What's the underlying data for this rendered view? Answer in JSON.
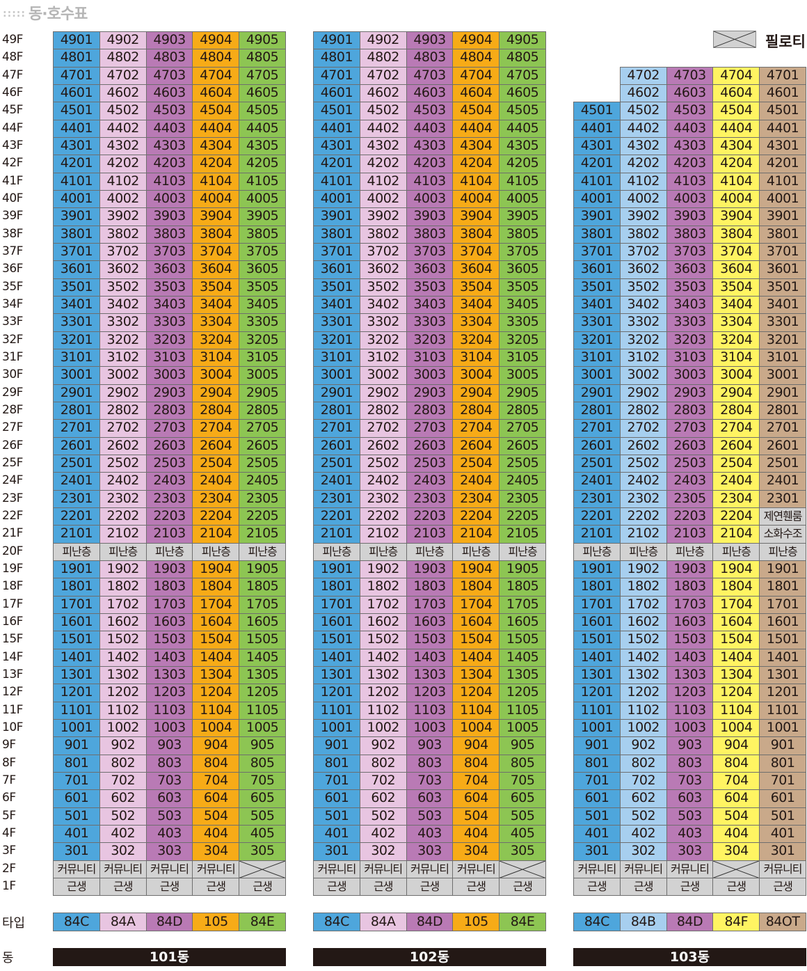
{
  "title": "동·호수표",
  "title_dots": ":::::",
  "legend": {
    "label": "필로티",
    "icon": "piloti-cross-icon"
  },
  "floors": [
    "49F",
    "48F",
    "47F",
    "46F",
    "45F",
    "44F",
    "43F",
    "42F",
    "41F",
    "40F",
    "39F",
    "38F",
    "37F",
    "36F",
    "35F",
    "34F",
    "33F",
    "32F",
    "31F",
    "30F",
    "29F",
    "28F",
    "27F",
    "26F",
    "25F",
    "24F",
    "23F",
    "22F",
    "21F",
    "20F",
    "19F",
    "18F",
    "17F",
    "16F",
    "15F",
    "14F",
    "13F",
    "12F",
    "11F",
    "10F",
    "9F",
    "8F",
    "7F",
    "6F",
    "5F",
    "4F",
    "3F",
    "2F",
    "1F"
  ],
  "type_label": "타입",
  "dong_label": "동",
  "gray_color": "#d2d2d2",
  "buildings": [
    {
      "name": "101동",
      "colors": [
        "#4ea6dc",
        "#e8c5e1",
        "#b97ab5",
        "#f7ab17",
        "#8dc553"
      ],
      "types": [
        "84C",
        "84A",
        "84D",
        "105",
        "84E"
      ],
      "rows": [
        [
          "4901",
          "4902",
          "4903",
          "4904",
          "4905"
        ],
        [
          "4801",
          "4802",
          "4803",
          "4804",
          "4805"
        ],
        [
          "4701",
          "4702",
          "4703",
          "4704",
          "4705"
        ],
        [
          "4601",
          "4602",
          "4603",
          "4604",
          "4605"
        ],
        [
          "4501",
          "4502",
          "4503",
          "4504",
          "4505"
        ],
        [
          "4401",
          "4402",
          "4403",
          "4404",
          "4405"
        ],
        [
          "4301",
          "4302",
          "4303",
          "4304",
          "4305"
        ],
        [
          "4201",
          "4202",
          "4203",
          "4204",
          "4205"
        ],
        [
          "4101",
          "4102",
          "4103",
          "4104",
          "4105"
        ],
        [
          "4001",
          "4002",
          "4003",
          "4004",
          "4005"
        ],
        [
          "3901",
          "3902",
          "3903",
          "3904",
          "3905"
        ],
        [
          "3801",
          "3802",
          "3803",
          "3804",
          "3805"
        ],
        [
          "3701",
          "3702",
          "3703",
          "3704",
          "3705"
        ],
        [
          "3601",
          "3602",
          "3603",
          "3604",
          "3605"
        ],
        [
          "3501",
          "3502",
          "3503",
          "3504",
          "3505"
        ],
        [
          "3401",
          "3402",
          "3403",
          "3404",
          "3405"
        ],
        [
          "3301",
          "3302",
          "3303",
          "3304",
          "3305"
        ],
        [
          "3201",
          "3202",
          "3203",
          "3204",
          "3205"
        ],
        [
          "3101",
          "3102",
          "3103",
          "3104",
          "3105"
        ],
        [
          "3001",
          "3002",
          "3003",
          "3004",
          "3005"
        ],
        [
          "2901",
          "2902",
          "2903",
          "2904",
          "2905"
        ],
        [
          "2801",
          "2802",
          "2803",
          "2804",
          "2805"
        ],
        [
          "2701",
          "2702",
          "2703",
          "2704",
          "2705"
        ],
        [
          "2601",
          "2602",
          "2603",
          "2604",
          "2605"
        ],
        [
          "2501",
          "2502",
          "2503",
          "2504",
          "2505"
        ],
        [
          "2401",
          "2402",
          "2403",
          "2404",
          "2405"
        ],
        [
          "2301",
          "2302",
          "2303",
          "2304",
          "2305"
        ],
        [
          "2201",
          "2202",
          "2203",
          "2204",
          "2205"
        ],
        [
          "2101",
          "2102",
          "2103",
          "2104",
          "2105"
        ],
        [
          "피난층",
          "피난층",
          "피난층",
          "피난층",
          "피난층"
        ],
        [
          "1901",
          "1902",
          "1903",
          "1904",
          "1905"
        ],
        [
          "1801",
          "1802",
          "1803",
          "1804",
          "1805"
        ],
        [
          "1701",
          "1702",
          "1703",
          "1704",
          "1705"
        ],
        [
          "1601",
          "1602",
          "1603",
          "1604",
          "1605"
        ],
        [
          "1501",
          "1502",
          "1503",
          "1504",
          "1505"
        ],
        [
          "1401",
          "1402",
          "1403",
          "1404",
          "1405"
        ],
        [
          "1301",
          "1302",
          "1303",
          "1304",
          "1305"
        ],
        [
          "1201",
          "1202",
          "1203",
          "1204",
          "1205"
        ],
        [
          "1101",
          "1102",
          "1103",
          "1104",
          "1105"
        ],
        [
          "1001",
          "1002",
          "1003",
          "1004",
          "1005"
        ],
        [
          "901",
          "902",
          "903",
          "904",
          "905"
        ],
        [
          "801",
          "802",
          "803",
          "804",
          "805"
        ],
        [
          "701",
          "702",
          "703",
          "704",
          "705"
        ],
        [
          "601",
          "602",
          "603",
          "604",
          "605"
        ],
        [
          "501",
          "502",
          "503",
          "504",
          "505"
        ],
        [
          "401",
          "402",
          "403",
          "404",
          "405"
        ],
        [
          "301",
          "302",
          "303",
          "304",
          "305"
        ],
        [
          "커뮤니티",
          "커뮤니티",
          "커뮤니티",
          "커뮤니티",
          ""
        ],
        [
          "근생",
          "근생",
          "근생",
          "근생",
          "근생"
        ]
      ]
    },
    {
      "name": "102동",
      "colors": [
        "#4ea6dc",
        "#e8c5e1",
        "#b97ab5",
        "#f7ab17",
        "#8dc553"
      ],
      "types": [
        "84C",
        "84A",
        "84D",
        "105",
        "84E"
      ],
      "rows": [
        [
          "4901",
          "4902",
          "4903",
          "4904",
          "4905"
        ],
        [
          "4801",
          "4802",
          "4803",
          "4804",
          "4805"
        ],
        [
          "4701",
          "4702",
          "4703",
          "4704",
          "4705"
        ],
        [
          "4601",
          "4602",
          "4603",
          "4604",
          "4605"
        ],
        [
          "4501",
          "4502",
          "4503",
          "4504",
          "4505"
        ],
        [
          "4401",
          "4402",
          "4403",
          "4404",
          "4405"
        ],
        [
          "4301",
          "4302",
          "4303",
          "4304",
          "4305"
        ],
        [
          "4201",
          "4202",
          "4203",
          "4204",
          "4205"
        ],
        [
          "4101",
          "4102",
          "4103",
          "4104",
          "4105"
        ],
        [
          "4001",
          "4002",
          "4003",
          "4004",
          "4005"
        ],
        [
          "3901",
          "3902",
          "3903",
          "3904",
          "3905"
        ],
        [
          "3801",
          "3802",
          "3803",
          "3804",
          "3805"
        ],
        [
          "3701",
          "3702",
          "3703",
          "3704",
          "3705"
        ],
        [
          "3601",
          "3602",
          "3603",
          "3604",
          "3605"
        ],
        [
          "3501",
          "3502",
          "3503",
          "3504",
          "3505"
        ],
        [
          "3401",
          "3402",
          "3403",
          "3404",
          "3405"
        ],
        [
          "3301",
          "3302",
          "3303",
          "3304",
          "3305"
        ],
        [
          "3201",
          "3202",
          "3203",
          "3204",
          "3205"
        ],
        [
          "3101",
          "3102",
          "3103",
          "3104",
          "3105"
        ],
        [
          "3001",
          "3002",
          "3003",
          "3004",
          "3005"
        ],
        [
          "2901",
          "2902",
          "2903",
          "2904",
          "2905"
        ],
        [
          "2801",
          "2802",
          "2803",
          "2804",
          "2805"
        ],
        [
          "2701",
          "2702",
          "2703",
          "2704",
          "2705"
        ],
        [
          "2601",
          "2602",
          "2603",
          "2604",
          "2605"
        ],
        [
          "2501",
          "2502",
          "2503",
          "2504",
          "2505"
        ],
        [
          "2401",
          "2402",
          "2403",
          "2404",
          "2405"
        ],
        [
          "2301",
          "2302",
          "2303",
          "2304",
          "2305"
        ],
        [
          "2201",
          "2202",
          "2203",
          "2204",
          "2205"
        ],
        [
          "2101",
          "2102",
          "2103",
          "2104",
          "2105"
        ],
        [
          "피난층",
          "피난층",
          "피난층",
          "피난층",
          "피난층"
        ],
        [
          "1901",
          "1902",
          "1903",
          "1904",
          "1905"
        ],
        [
          "1801",
          "1802",
          "1803",
          "1804",
          "1805"
        ],
        [
          "1701",
          "1702",
          "1703",
          "1704",
          "1705"
        ],
        [
          "1601",
          "1602",
          "1603",
          "1604",
          "1605"
        ],
        [
          "1501",
          "1502",
          "1503",
          "1504",
          "1505"
        ],
        [
          "1401",
          "1402",
          "1403",
          "1404",
          "1405"
        ],
        [
          "1301",
          "1302",
          "1303",
          "1304",
          "1305"
        ],
        [
          "1201",
          "1202",
          "1203",
          "1204",
          "1205"
        ],
        [
          "1101",
          "1102",
          "1103",
          "1104",
          "1105"
        ],
        [
          "1001",
          "1002",
          "1003",
          "1004",
          "1005"
        ],
        [
          "901",
          "902",
          "903",
          "904",
          "905"
        ],
        [
          "801",
          "802",
          "803",
          "804",
          "805"
        ],
        [
          "701",
          "702",
          "703",
          "704",
          "705"
        ],
        [
          "601",
          "602",
          "603",
          "604",
          "605"
        ],
        [
          "501",
          "502",
          "503",
          "504",
          "505"
        ],
        [
          "401",
          "402",
          "403",
          "404",
          "405"
        ],
        [
          "301",
          "302",
          "303",
          "304",
          "305"
        ],
        [
          "커뮤니티",
          "커뮤니티",
          "커뮤니티",
          "커뮤니티",
          ""
        ],
        [
          "근생",
          "근생",
          "근생",
          "근생",
          "근생"
        ]
      ]
    },
    {
      "name": "103동",
      "colors": [
        "#4ea6dc",
        "#a7cfef",
        "#b97ab5",
        "#fff462",
        "#c9a98a"
      ],
      "types": [
        "84C",
        "84B",
        "84D",
        "84F",
        "84OT"
      ],
      "rows": [
        [
          null,
          null,
          null,
          null,
          null
        ],
        [
          null,
          null,
          null,
          null,
          null
        ],
        [
          null,
          "4702",
          "4703",
          "4704",
          "4701"
        ],
        [
          null,
          "4602",
          "4603",
          "4604",
          "4601"
        ],
        [
          "4501",
          "4502",
          "4503",
          "4504",
          "4501"
        ],
        [
          "4401",
          "4402",
          "4403",
          "4404",
          "4401"
        ],
        [
          "4301",
          "4302",
          "4303",
          "4304",
          "4301"
        ],
        [
          "4201",
          "4202",
          "4203",
          "4204",
          "4201"
        ],
        [
          "4101",
          "4102",
          "4103",
          "4104",
          "4101"
        ],
        [
          "4001",
          "4002",
          "4003",
          "4004",
          "4001"
        ],
        [
          "3901",
          "3902",
          "3903",
          "3904",
          "3901"
        ],
        [
          "3801",
          "3802",
          "3803",
          "3804",
          "3801"
        ],
        [
          "3701",
          "3702",
          "3703",
          "3704",
          "3701"
        ],
        [
          "3601",
          "3602",
          "3603",
          "3604",
          "3601"
        ],
        [
          "3501",
          "3502",
          "3503",
          "3504",
          "3501"
        ],
        [
          "3401",
          "3402",
          "3403",
          "3404",
          "3401"
        ],
        [
          "3301",
          "3302",
          "3303",
          "3304",
          "3301"
        ],
        [
          "3201",
          "3202",
          "3203",
          "3204",
          "3201"
        ],
        [
          "3101",
          "3102",
          "3103",
          "3104",
          "3101"
        ],
        [
          "3001",
          "3002",
          "3003",
          "3004",
          "3001"
        ],
        [
          "2901",
          "2902",
          "2903",
          "2904",
          "2901"
        ],
        [
          "2801",
          "2802",
          "2803",
          "2804",
          "2801"
        ],
        [
          "2701",
          "2702",
          "2703",
          "2704",
          "2701"
        ],
        [
          "2601",
          "2602",
          "2603",
          "2604",
          "2601"
        ],
        [
          "2501",
          "2502",
          "2503",
          "2504",
          "2501"
        ],
        [
          "2401",
          "2402",
          "2403",
          "2404",
          "2401"
        ],
        [
          "2301",
          "2302",
          "2305",
          "2304",
          "2301"
        ],
        [
          "2201",
          "2202",
          "2203",
          "2204",
          "제연휀룸"
        ],
        [
          "2101",
          "2102",
          "2103",
          "2104",
          "소화수조"
        ],
        [
          "피난층",
          "피난층",
          "피난층",
          "피난층",
          "피난층"
        ],
        [
          "1901",
          "1902",
          "1903",
          "1904",
          "1901"
        ],
        [
          "1801",
          "1802",
          "1803",
          "1804",
          "1801"
        ],
        [
          "1701",
          "1702",
          "1703",
          "1704",
          "1701"
        ],
        [
          "1601",
          "1602",
          "1603",
          "1604",
          "1601"
        ],
        [
          "1501",
          "1502",
          "1503",
          "1504",
          "1501"
        ],
        [
          "1401",
          "1402",
          "1403",
          "1404",
          "1401"
        ],
        [
          "1301",
          "1302",
          "1303",
          "1304",
          "1301"
        ],
        [
          "1201",
          "1202",
          "1203",
          "1204",
          "1201"
        ],
        [
          "1101",
          "1102",
          "1103",
          "1104",
          "1101"
        ],
        [
          "1001",
          "1002",
          "1003",
          "1004",
          "1001"
        ],
        [
          "901",
          "902",
          "903",
          "904",
          "901"
        ],
        [
          "801",
          "802",
          "803",
          "804",
          "801"
        ],
        [
          "701",
          "702",
          "703",
          "704",
          "701"
        ],
        [
          "601",
          "602",
          "603",
          "604",
          "601"
        ],
        [
          "501",
          "502",
          "503",
          "504",
          "501"
        ],
        [
          "401",
          "402",
          "403",
          "404",
          "401"
        ],
        [
          "301",
          "302",
          "303",
          "304",
          "301"
        ],
        [
          "커뮤니티",
          "커뮤니티",
          "커뮤니티",
          "",
          "커뮤니티"
        ],
        [
          "근생",
          "근생",
          "근생",
          "근생",
          "근생"
        ]
      ]
    }
  ]
}
